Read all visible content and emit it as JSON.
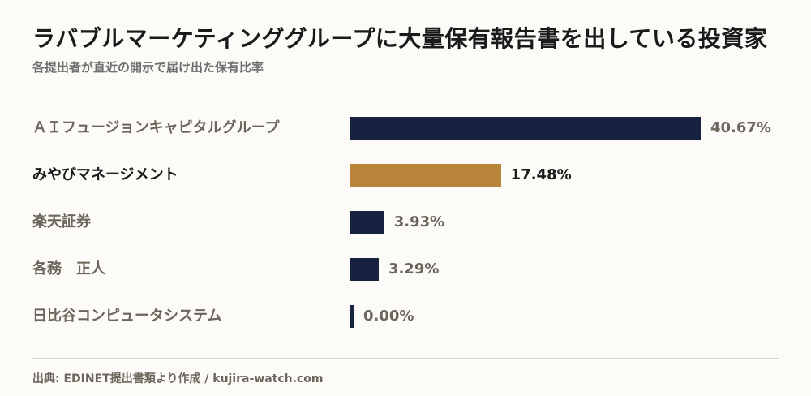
{
  "title": "ラバブルマーケティンググループに大量保有報告書を出している投資家",
  "subtitle": "各提出者が直近の開示で届け出た保有比率",
  "source": "出典: EDINET提出書類より作成 / kujira-watch.com",
  "colors": {
    "bar_default": "#172240",
    "bar_highlight": "#b8853a",
    "label_default": "#6b665c",
    "label_highlight": "#1a1a1a",
    "background": "#fcfbf7"
  },
  "chart_data": {
    "type": "bar",
    "orientation": "horizontal",
    "categories": [
      "ＡＩフュージョンキャピタルグループ",
      "みやびマネージメント",
      "楽天証券",
      "各務　正人",
      "日比谷コンピュータシステム"
    ],
    "values": [
      40.67,
      17.48,
      3.93,
      3.29,
      0.0
    ],
    "value_labels": [
      "40.67%",
      "17.48%",
      "3.93%",
      "3.29%",
      "0.00%"
    ],
    "highlight_index": 1,
    "xlim": [
      0,
      40.67
    ],
    "grid": false,
    "legend": "none"
  }
}
